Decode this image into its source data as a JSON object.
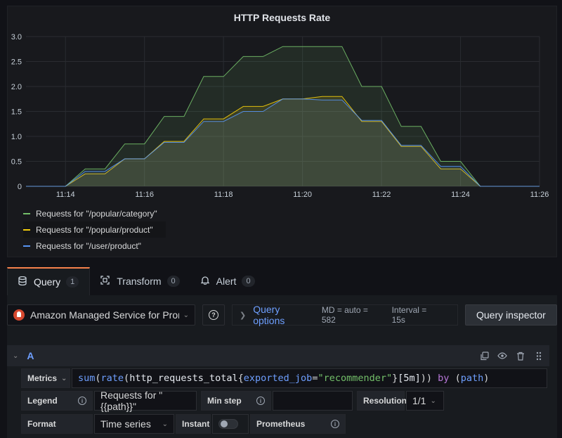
{
  "panel": {
    "title": "HTTP Requests Rate"
  },
  "chart_data": {
    "type": "area",
    "title": "HTTP Requests Rate",
    "xlabel": "",
    "ylabel": "",
    "x": [
      "11:13",
      "11:13.5",
      "11:14",
      "11:14.5",
      "11:15",
      "11:15.5",
      "11:16",
      "11:16.5",
      "11:17",
      "11:17.5",
      "11:18",
      "11:18.5",
      "11:19",
      "11:19.5",
      "11:20",
      "11:20.5",
      "11:21",
      "11:21.5",
      "11:22",
      "11:22.5",
      "11:23",
      "11:23.5",
      "11:24",
      "11:24.5",
      "11:25",
      "11:25.5",
      "11:26"
    ],
    "x_minutes": [
      13,
      13.5,
      14,
      14.5,
      15,
      15.5,
      16,
      16.5,
      17,
      17.5,
      18,
      18.5,
      19,
      19.5,
      20,
      20.5,
      21,
      21.5,
      22,
      22.5,
      23,
      23.5,
      24,
      24.5,
      25,
      25.5,
      26
    ],
    "x_ticks": [
      "11:14",
      "11:16",
      "11:18",
      "11:20",
      "11:22",
      "11:24",
      "11:26"
    ],
    "y_ticks": [
      "0",
      "0.5",
      "1.0",
      "1.5",
      "2.0",
      "2.5",
      "3.0"
    ],
    "ylim": [
      0,
      3.0
    ],
    "series": [
      {
        "name": "Requests for \"/popular/category\"",
        "color": "#73bf69",
        "values": [
          0,
          0,
          0,
          0.35,
          0.35,
          0.85,
          0.85,
          1.4,
          1.4,
          2.2,
          2.2,
          2.6,
          2.6,
          2.8,
          2.8,
          2.8,
          2.8,
          2.0,
          2.0,
          1.2,
          1.2,
          0.5,
          0.5,
          0,
          0,
          0,
          0
        ]
      },
      {
        "name": "Requests for \"/popular/product\"",
        "color": "#f2cc0c",
        "values": [
          0,
          0,
          0,
          0.25,
          0.25,
          0.55,
          0.55,
          0.9,
          0.9,
          1.35,
          1.35,
          1.6,
          1.6,
          1.75,
          1.75,
          1.8,
          1.8,
          1.3,
          1.3,
          0.8,
          0.8,
          0.35,
          0.35,
          0,
          0,
          0,
          0
        ]
      },
      {
        "name": "Requests for \"/user/product\"",
        "color": "#5794f2",
        "values": [
          0,
          0,
          0,
          0.3,
          0.3,
          0.55,
          0.55,
          0.88,
          0.88,
          1.3,
          1.3,
          1.5,
          1.5,
          1.75,
          1.75,
          1.73,
          1.73,
          1.32,
          1.32,
          0.82,
          0.82,
          0.4,
          0.4,
          0,
          0,
          0,
          0
        ]
      }
    ],
    "grid": true,
    "legend": "bottom-left"
  },
  "legend": [
    {
      "label": "Requests for \"/popular/category\"",
      "color": "#73bf69"
    },
    {
      "label": "Requests for \"/popular/product\"",
      "color": "#f2cc0c"
    },
    {
      "label": "Requests for \"/user/product\"",
      "color": "#5794f2"
    }
  ],
  "tabs": [
    {
      "label": "Query",
      "count": "1"
    },
    {
      "label": "Transform",
      "count": "0"
    },
    {
      "label": "Alert",
      "count": "0"
    }
  ],
  "datasource": {
    "name": "Amazon Managed Service for Prometheus",
    "query_options_label": "Query options",
    "md": "MD = auto = 582",
    "interval": "Interval = 15s",
    "inspector_label": "Query inspector"
  },
  "query": {
    "ref": "A",
    "metrics_label": "Metrics",
    "expr_parts": {
      "fn1": "sum",
      "p1": "(",
      "fn2": "rate",
      "p2": "(",
      "metric": "http_requests_total",
      "b1": "{",
      "lbl": "exported_job",
      "eq": "=",
      "str": "\"recommender\"",
      "b2": "}",
      "range": "[5m]",
      "p3": "))",
      "kw": " by ",
      "p4": "(",
      "grp": "path",
      "p5": ")"
    },
    "legend_label": "Legend",
    "legend_value": "Requests for \"{{path}}\"",
    "min_step_label": "Min step",
    "min_step_value": "",
    "resolution_label": "Resolution",
    "resolution_value": "1/1",
    "format_label": "Format",
    "format_value": "Time series",
    "instant_label": "Instant",
    "prometheus_label": "Prometheus"
  }
}
